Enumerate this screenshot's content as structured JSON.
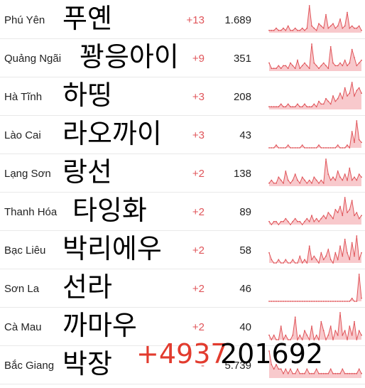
{
  "rows": [
    {
      "name": "Phú Yên",
      "korean": "푸옌",
      "delta": "+13",
      "total": "1.689",
      "spark": [
        1,
        1,
        1,
        2,
        1,
        1,
        2,
        1,
        3,
        1,
        1,
        2,
        1,
        1,
        2,
        1,
        2,
        12,
        3,
        2,
        1,
        4,
        3,
        2,
        8,
        2,
        3,
        4,
        2,
        3,
        6,
        2,
        3,
        9,
        2,
        3,
        2,
        2,
        3,
        1
      ]
    },
    {
      "name": "Quảng Ngãi",
      "korean": "꽝응아이",
      "delta": "+9",
      "total": "351",
      "spark": [
        3,
        1,
        1,
        1,
        2,
        1,
        2,
        2,
        1,
        3,
        2,
        1,
        4,
        1,
        2,
        3,
        2,
        1,
        10,
        3,
        2,
        1,
        2,
        3,
        2,
        1,
        9,
        3,
        2,
        2,
        3,
        2,
        4,
        2,
        3,
        8,
        5,
        2,
        3,
        4
      ]
    },
    {
      "name": "Hà Tĩnh",
      "korean": "하띵",
      "delta": "+3",
      "total": "208",
      "spark": [
        1,
        1,
        1,
        1,
        1,
        2,
        1,
        1,
        2,
        1,
        1,
        1,
        2,
        1,
        1,
        2,
        1,
        1,
        1,
        2,
        1,
        3,
        2,
        2,
        4,
        3,
        2,
        5,
        3,
        4,
        6,
        4,
        8,
        5,
        6,
        10,
        5,
        7,
        8,
        6
      ]
    },
    {
      "name": "Lào Cai",
      "korean": "라오까이",
      "delta": "+3",
      "total": "43",
      "spark": [
        0,
        0,
        0,
        1,
        0,
        0,
        0,
        0,
        1,
        0,
        0,
        0,
        0,
        0,
        1,
        0,
        0,
        0,
        0,
        0,
        0,
        1,
        0,
        0,
        0,
        0,
        0,
        0,
        0,
        1,
        0,
        0,
        0,
        1,
        0,
        6,
        2,
        10,
        3,
        2
      ]
    },
    {
      "name": "Lạng Sơn",
      "korean": "랑선",
      "delta": "+2",
      "total": "138",
      "spark": [
        1,
        2,
        1,
        1,
        3,
        2,
        1,
        5,
        2,
        1,
        2,
        4,
        2,
        1,
        3,
        2,
        1,
        2,
        1,
        3,
        2,
        1,
        2,
        1,
        9,
        4,
        2,
        3,
        2,
        5,
        3,
        2,
        4,
        2,
        6,
        2,
        3,
        2,
        4,
        3
      ]
    },
    {
      "name": "Thanh Hóa",
      "korean": "타잉화",
      "delta": "+2",
      "total": "89",
      "spark": [
        1,
        0,
        1,
        1,
        0,
        1,
        1,
        2,
        1,
        0,
        1,
        2,
        1,
        1,
        0,
        1,
        2,
        1,
        3,
        1,
        2,
        1,
        2,
        3,
        2,
        4,
        3,
        2,
        5,
        4,
        6,
        3,
        9,
        4,
        5,
        8,
        3,
        4,
        2,
        3
      ]
    },
    {
      "name": "Bạc Liêu",
      "korean": "박리에우",
      "delta": "+2",
      "total": "58",
      "spark": [
        3,
        1,
        0,
        0,
        1,
        0,
        0,
        1,
        0,
        0,
        1,
        0,
        0,
        2,
        0,
        1,
        0,
        5,
        1,
        2,
        1,
        0,
        3,
        1,
        2,
        4,
        1,
        0,
        3,
        1,
        5,
        2,
        7,
        3,
        1,
        6,
        2,
        8,
        1,
        3
      ]
    },
    {
      "name": "Sơn La",
      "korean": "선라",
      "delta": "+2",
      "total": "46",
      "spark": [
        0,
        0,
        0,
        0,
        0,
        0,
        0,
        0,
        0,
        0,
        0,
        0,
        0,
        0,
        0,
        0,
        0,
        0,
        0,
        0,
        0,
        0,
        0,
        0,
        0,
        0,
        0,
        0,
        0,
        0,
        0,
        0,
        0,
        0,
        0,
        1,
        0,
        0,
        9,
        1
      ]
    },
    {
      "name": "Cà Mau",
      "korean": "까마우",
      "delta": "+2",
      "total": "40",
      "spark": [
        1,
        0,
        1,
        0,
        0,
        3,
        0,
        1,
        0,
        0,
        1,
        5,
        0,
        1,
        0,
        2,
        1,
        0,
        3,
        0,
        1,
        0,
        4,
        2,
        0,
        1,
        3,
        0,
        2,
        1,
        6,
        1,
        2,
        0,
        3,
        1,
        4,
        0,
        2,
        1
      ]
    },
    {
      "name": "Bắc Giang",
      "korean": "박장",
      "delta": "-",
      "total": "5.739",
      "spark": [
        6,
        3,
        2,
        3,
        2,
        2,
        1,
        2,
        1,
        2,
        1,
        1,
        2,
        1,
        1,
        1,
        2,
        1,
        1,
        1,
        2,
        1,
        1,
        1,
        1,
        1,
        2,
        1,
        1,
        1,
        1,
        2,
        1,
        1,
        1,
        1,
        1,
        1,
        2,
        1
      ]
    }
  ],
  "overlay": {
    "delta_text": "+4937",
    "total_text": "201692"
  },
  "colors": {
    "accent": "#e0555a",
    "spark_fill": "#f8c9cc",
    "spark_line": "#e0555a"
  }
}
